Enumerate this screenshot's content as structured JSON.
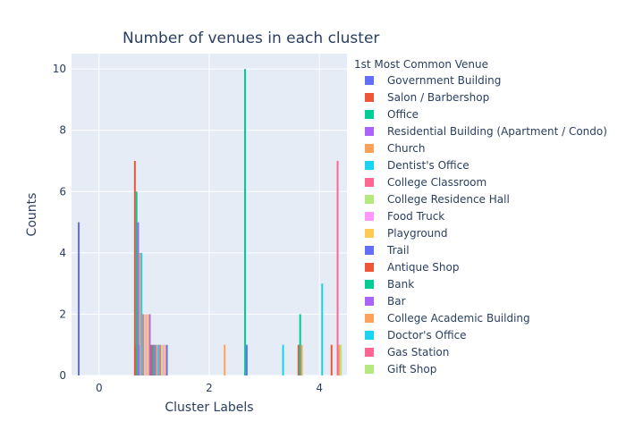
{
  "chart_data": {
    "type": "bar",
    "title": "Number of venues in each cluster",
    "xlabel": "Cluster Labels",
    "ylabel": "Counts",
    "xlim": [
      -0.5,
      4.5
    ],
    "ylim": [
      0,
      10.5
    ],
    "xticks": [
      "0",
      "2",
      "4"
    ],
    "yticks": [
      "0",
      "2",
      "4",
      "6",
      "8",
      "10"
    ],
    "grid": true,
    "legend_title": "1st Most Common Venue",
    "legend_position": "right",
    "series": [
      {
        "name": "Government Building",
        "color": "#636efa",
        "points": [
          {
            "x": -0.37,
            "y": 5
          },
          {
            "x": 0.93,
            "y": 1
          },
          {
            "x": 2.68,
            "y": 1
          }
        ]
      },
      {
        "name": "Salon / Barbershop",
        "color": "#ef553b",
        "points": [
          {
            "x": 0.65,
            "y": 7
          },
          {
            "x": 0.96,
            "y": 1
          },
          {
            "x": 3.62,
            "y": 1
          },
          {
            "x": 4.22,
            "y": 1
          }
        ]
      },
      {
        "name": "Office",
        "color": "#00cc96",
        "points": [
          {
            "x": 0.68,
            "y": 6
          },
          {
            "x": 0.99,
            "y": 1
          },
          {
            "x": 2.65,
            "y": 10
          },
          {
            "x": 3.65,
            "y": 2
          }
        ]
      },
      {
        "name": "Residential Building (Apartment / Condo)",
        "color": "#ab63fa",
        "points": [
          {
            "x": 0.71,
            "y": 5
          },
          {
            "x": 0.92,
            "y": 2
          },
          {
            "x": 1.02,
            "y": 1
          }
        ]
      },
      {
        "name": "Church",
        "color": "#ffa15a",
        "points": [
          {
            "x": 0.74,
            "y": 4
          },
          {
            "x": 1.05,
            "y": 1
          },
          {
            "x": 2.28,
            "y": 1
          },
          {
            "x": 3.68,
            "y": 1
          }
        ]
      },
      {
        "name": "Dentist's Office",
        "color": "#19d3f3",
        "points": [
          {
            "x": 0.77,
            "y": 4
          },
          {
            "x": 1.08,
            "y": 1
          },
          {
            "x": 3.34,
            "y": 1
          }
        ]
      },
      {
        "name": "College Classroom",
        "color": "#ff6692",
        "points": [
          {
            "x": 0.8,
            "y": 2
          },
          {
            "x": 1.11,
            "y": 1
          }
        ]
      },
      {
        "name": "College Residence Hall",
        "color": "#b6e880",
        "points": [
          {
            "x": 0.83,
            "y": 2
          },
          {
            "x": 1.14,
            "y": 1
          }
        ]
      },
      {
        "name": "Food Truck",
        "color": "#ff97ff",
        "points": [
          {
            "x": 0.86,
            "y": 2
          },
          {
            "x": 1.17,
            "y": 1
          }
        ]
      },
      {
        "name": "Playground",
        "color": "#fecb52",
        "points": [
          {
            "x": 0.89,
            "y": 2
          },
          {
            "x": 1.2,
            "y": 1
          }
        ]
      },
      {
        "name": "Trail",
        "color": "#636efa",
        "points": [
          {
            "x": 1.23,
            "y": 1
          }
        ]
      },
      {
        "name": "Antique Shop",
        "color": "#ef553b",
        "points": [
          {
            "x": 0.66,
            "y": 1
          }
        ]
      },
      {
        "name": "Bank",
        "color": "#00cc96",
        "points": [
          {
            "x": 0.69,
            "y": 1
          }
        ]
      },
      {
        "name": "Bar",
        "color": "#ab63fa",
        "points": [
          {
            "x": 0.72,
            "y": 1
          }
        ]
      },
      {
        "name": "College Academic Building",
        "color": "#ffa15a",
        "points": [
          {
            "x": 4.36,
            "y": 1
          }
        ]
      },
      {
        "name": "Doctor's Office",
        "color": "#19d3f3",
        "points": [
          {
            "x": 4.05,
            "y": 3
          }
        ]
      },
      {
        "name": "Gas Station",
        "color": "#ff6692",
        "points": [
          {
            "x": 4.33,
            "y": 7
          }
        ]
      },
      {
        "name": "Gift Shop",
        "color": "#b6e880",
        "points": [
          {
            "x": 4.39,
            "y": 1
          }
        ]
      }
    ]
  }
}
